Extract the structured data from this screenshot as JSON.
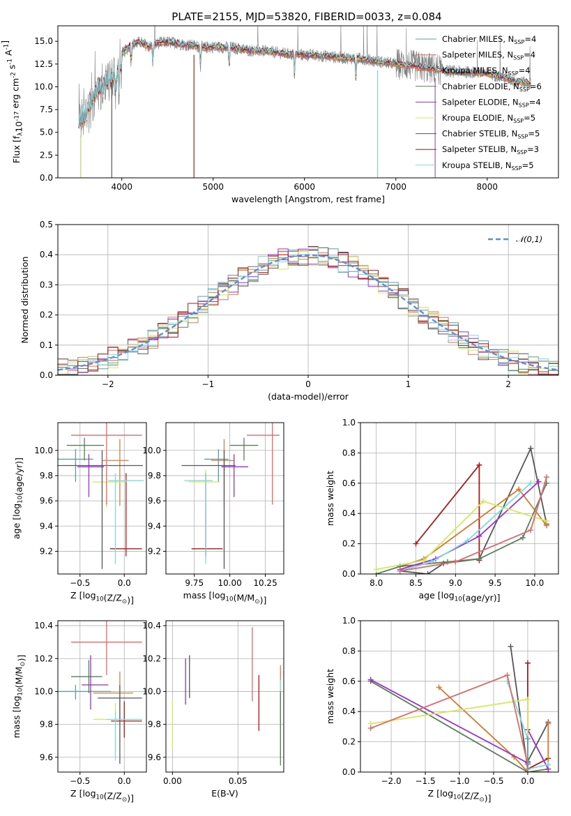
{
  "figure_title": "PLATE=2155, MJD=53820, FIBERID=0033, z=0.084",
  "models": [
    {
      "label": "Chabrier MILES, N$_{SSP}$=4",
      "base": "Chabrier MILES, N",
      "n": "4",
      "color": "#5f9ea0",
      "color2": "#5f9ea0"
    },
    {
      "label": "Salpeter MILES, N$_{SSP}$=4",
      "base": "Salpeter MILES, N",
      "n": "4",
      "color": "#e06a6a",
      "color2": "#e06a6a"
    },
    {
      "label": "Kroupa MILES, N$_{SSP}$=4",
      "base": "Kroupa MILES, N",
      "n": "4",
      "color": "#e07b39",
      "color2": "#d9772c"
    },
    {
      "label": "Chabrier ELODIE, N$_{SSP}$=6",
      "base": "Chabrier ELODIE, N",
      "n": "6",
      "color": "#5a7d5a",
      "color2": "#5a7d5a"
    },
    {
      "label": "Salpeter ELODIE, N$_{SSP}$=4",
      "base": "Salpeter ELODIE, N",
      "n": "4",
      "color": "#9932cc",
      "color2": "#9932cc"
    },
    {
      "label": "Kroupa ELODIE, N$_{SSP}$=5",
      "base": "Kroupa ELODIE, N",
      "n": "5",
      "color": "#d4e85a",
      "color2": "#d4e85a"
    },
    {
      "label": "Chabrier STELIB, N$_{SSP}$=5",
      "base": "Chabrier STELIB, N",
      "n": "5",
      "color": "#555555",
      "color2": "#555555"
    },
    {
      "label": "Salpeter STELIB, N$_{SSP}$=3",
      "base": "Salpeter STELIB, N",
      "n": "3",
      "color": "#aa1a1a",
      "color2": "#aa1a1a"
    },
    {
      "label": "Kroupa STELIB, N$_{SSP}$=5",
      "base": "Kroupa STELIB, N",
      "n": "5",
      "color": "#80d8e0",
      "color2": "#80d8e0"
    }
  ],
  "chart_data": [
    {
      "type": "line",
      "title": "PLATE=2155, MJD=53820, FIBERID=0033, z=0.084",
      "xlabel": "wavelength [Angstrom, rest frame]",
      "ylabel": "Flux [f$_λ$10$^{-17}$ erg cm$^{-2}$ s$^{-1}$ A$^{-1}$]",
      "xlim": [
        3300,
        8780
      ],
      "ylim": [
        0,
        16.7
      ],
      "xticks": [
        4000,
        5000,
        6000,
        7000,
        8000
      ],
      "yticks": [
        0.0,
        2.5,
        5.0,
        7.5,
        10.0,
        12.5,
        15.0
      ],
      "ytick_labels": [
        "0.0",
        "2.5",
        "5.0",
        "7.5",
        "10.0",
        "12.5",
        "15.0"
      ],
      "data_continuum": {
        "x": [
          3530,
          3600,
          3700,
          3800,
          3900,
          4000,
          4100,
          4200,
          4300,
          4400,
          4500,
          4600,
          4700,
          4800,
          4900,
          5000,
          5200,
          5400,
          5600,
          5800,
          6000,
          6200,
          6400,
          6600,
          6800,
          7000,
          7200,
          7400,
          7600,
          7800,
          8000,
          8200,
          8300,
          8480
        ],
        "y": [
          7.5,
          8.0,
          10.5,
          11.5,
          12.2,
          13.6,
          14.6,
          14.9,
          14.4,
          14.8,
          14.9,
          14.8,
          14.6,
          14.5,
          14.3,
          14.4,
          14.3,
          14.0,
          13.9,
          13.6,
          13.5,
          13.4,
          13.2,
          13.1,
          12.8,
          12.5,
          12.3,
          12.0,
          11.7,
          11.6,
          11.5,
          11.0,
          10.6,
          10.4
        ]
      },
      "grid": false,
      "legend": "right"
    },
    {
      "type": "line",
      "xlabel": "(data-model)/error",
      "ylabel": "Normed distribution",
      "xlim": [
        -2.5,
        2.5
      ],
      "ylim": [
        0,
        0.5
      ],
      "xticks": [
        -2,
        -1,
        0,
        1,
        2
      ],
      "xtick_labels": [
        "−2",
        "−1",
        "0",
        "1",
        "2"
      ],
      "yticks": [
        0.0,
        0.1,
        0.2,
        0.3,
        0.4,
        0.5
      ],
      "ytick_labels": [
        "0.0",
        "0.1",
        "0.2",
        "0.3",
        "0.4",
        "0.5"
      ],
      "reference_curve": {
        "name": "$\\mathcal{N}(0,1)$",
        "mean": 0,
        "sigma": 1,
        "color": "#5b8fd6"
      },
      "grid": true,
      "legend": "top-right"
    },
    {
      "type": "scatter",
      "xlabel": "Z [log$_{10}$(Z/Z$_⊙$)]",
      "ylabel": "age  [log$_{10}$(age/yr)]",
      "xlim": [
        -0.75,
        0.25
      ],
      "ylim": [
        9.02,
        10.22
      ],
      "xticks": [
        -0.5,
        0.0
      ],
      "xtick_labels": [
        "−0.5",
        "0.0"
      ],
      "yticks": [
        9.2,
        9.4,
        9.6,
        9.8,
        10.0
      ],
      "ytick_labels": [
        "9.2",
        "9.4",
        "9.6",
        "9.8",
        "10.0"
      ],
      "points": [
        {
          "model": 0,
          "x": -0.55,
          "xerr": [
            0.25,
            0.2
          ],
          "y": 9.93,
          "yerr": [
            0.18,
            0.08
          ]
        },
        {
          "model": 7,
          "x": 0.02,
          "xerr": [
            0.18,
            0.18
          ],
          "y": 9.22,
          "yerr": [
            0.06,
            0.6
          ]
        },
        {
          "model": 2,
          "x": -0.05,
          "xerr": [
            0.2,
            0.1
          ],
          "y": 9.92,
          "yerr": [
            0.36,
            0.17
          ]
        },
        {
          "model": 3,
          "x": -0.45,
          "xerr": [
            0.2,
            0.22
          ],
          "y": 10.04,
          "yerr": [
            0.12,
            0.06
          ]
        },
        {
          "model": 4,
          "x": -0.4,
          "xerr": [
            0.13,
            0.17
          ],
          "y": 9.87,
          "yerr": [
            0.24,
            0.1
          ]
        },
        {
          "model": 5,
          "x": -0.2,
          "xerr": [
            0.16,
            0.22
          ],
          "y": 9.75,
          "yerr": [
            0.2,
            0.1
          ]
        },
        {
          "model": 6,
          "x": -0.25,
          "xerr": [
            0.5,
            0.46
          ],
          "y": 9.88,
          "yerr": [
            0.82,
            0.12
          ]
        },
        {
          "model": 8,
          "x": -0.1,
          "xerr": [
            0.08,
            0.32
          ],
          "y": 9.76,
          "yerr": [
            0.66,
            0.06
          ]
        },
        {
          "model": 1,
          "x": -0.2,
          "xerr": [
            0.4,
            0.4
          ],
          "y": 10.12,
          "yerr": [
            0.55,
            0.1
          ]
        }
      ],
      "grid": true
    },
    {
      "type": "scatter",
      "xlabel": "mass [log$_{10}$(M/M$_⊙$)]",
      "xlim": [
        9.55,
        10.38
      ],
      "ylim": [
        9.02,
        10.22
      ],
      "xticks": [
        9.75,
        10.0,
        10.25
      ],
      "xtick_labels": [
        "9.75",
        "10.00",
        "10.25"
      ],
      "yticks": [
        9.2,
        9.4,
        9.6,
        9.8,
        10.0
      ],
      "ytick_labels": [
        "9.2",
        "9.4",
        "9.6",
        "9.8",
        "10.0"
      ],
      "points": [
        {
          "model": 0,
          "x": 9.92,
          "xerr": [
            0.1,
            0.07
          ],
          "y": 9.93,
          "yerr": [
            0.18,
            0.08
          ]
        },
        {
          "model": 7,
          "x": 9.83,
          "xerr": [
            0.1,
            0.12
          ],
          "y": 9.22,
          "yerr": [
            0.06,
            0.6
          ]
        },
        {
          "model": 2,
          "x": 9.96,
          "xerr": [
            0.09,
            0.07
          ],
          "y": 9.92,
          "yerr": [
            0.36,
            0.17
          ]
        },
        {
          "model": 3,
          "x": 10.1,
          "xerr": [
            0.1,
            0.1
          ],
          "y": 10.04,
          "yerr": [
            0.12,
            0.06
          ]
        },
        {
          "model": 4,
          "x": 10.03,
          "xerr": [
            0.09,
            0.1
          ],
          "y": 9.87,
          "yerr": [
            0.24,
            0.1
          ]
        },
        {
          "model": 5,
          "x": 9.83,
          "xerr": [
            0.12,
            0.1
          ],
          "y": 9.75,
          "yerr": [
            0.2,
            0.1
          ]
        },
        {
          "model": 6,
          "x": 9.96,
          "xerr": [
            0.3,
            0.08
          ],
          "y": 9.88,
          "yerr": [
            0.82,
            0.12
          ]
        },
        {
          "model": 8,
          "x": 9.83,
          "xerr": [
            0.15,
            0.05
          ],
          "y": 9.76,
          "yerr": [
            0.66,
            0.06
          ]
        },
        {
          "model": 1,
          "x": 10.3,
          "xerr": [
            0.18,
            0.05
          ],
          "y": 10.12,
          "yerr": [
            0.55,
            0.1
          ]
        }
      ],
      "grid": true
    },
    {
      "type": "line",
      "xlabel": "age  [log$_{10}$(age/yr)]",
      "ylabel": "mass weight",
      "xlim": [
        7.8,
        10.3
      ],
      "ylim": [
        0,
        1.0
      ],
      "xticks": [
        8.0,
        8.5,
        9.0,
        9.5,
        10.0
      ],
      "xtick_labels": [
        "8.0",
        "8.5",
        "9.0",
        "9.5",
        "10.0"
      ],
      "yticks": [
        0.0,
        0.2,
        0.4,
        0.6,
        0.8,
        1.0
      ],
      "ytick_labels": [
        "0.0",
        "0.2",
        "0.4",
        "0.6",
        "0.8",
        "1.0"
      ],
      "series": [
        {
          "model": 6,
          "x": [
            8.3,
            8.65,
            8.85,
            9.3,
            9.95,
            10.15
          ],
          "y": [
            0.02,
            0.0,
            0.07,
            0.1,
            0.83,
            0.33
          ]
        },
        {
          "model": 7,
          "x": [
            8.5,
            9.3,
            9.3
          ],
          "y": [
            0.2,
            0.72,
            0.09
          ]
        },
        {
          "model": 2,
          "x": [
            8.3,
            8.6,
            9.8,
            10.15
          ],
          "y": [
            0.05,
            0.1,
            0.56,
            0.32
          ]
        },
        {
          "model": 3,
          "x": [
            8.0,
            8.3,
            8.9,
            9.3,
            9.85,
            10.15
          ],
          "y": [
            0.0,
            0.05,
            0.08,
            0.1,
            0.24,
            0.6
          ]
        },
        {
          "model": 4,
          "x": [
            8.3,
            8.75,
            9.3,
            10.05
          ],
          "y": [
            0.03,
            0.1,
            0.25,
            0.61
          ]
        },
        {
          "model": 5,
          "x": [
            8.0,
            8.6,
            9.35,
            10.15
          ],
          "y": [
            0.03,
            0.09,
            0.48,
            0.35
          ]
        },
        {
          "model": 8,
          "x": [
            8.3,
            8.7,
            9.15,
            9.95
          ],
          "y": [
            0.02,
            0.08,
            0.22,
            0.6
          ]
        },
        {
          "model": 1,
          "x": [
            8.3,
            9.0,
            9.95,
            10.15
          ],
          "y": [
            0.02,
            0.08,
            0.29,
            0.64
          ]
        }
      ],
      "grid": true
    },
    {
      "type": "scatter",
      "xlabel": "Z [log$_{10}$(Z/Z$_⊙$)]",
      "ylabel": "mass [log$_{10}$(M/M$_⊙$)]",
      "xlim": [
        -0.75,
        0.25
      ],
      "ylim": [
        9.51,
        10.43
      ],
      "xticks": [
        -0.5,
        0.0
      ],
      "xtick_labels": [
        "−0.5",
        "0.0"
      ],
      "yticks": [
        9.6,
        9.8,
        10.0,
        10.2,
        10.4
      ],
      "ytick_labels": [
        "9.6",
        "9.8",
        "10.0",
        "10.2",
        "10.4"
      ],
      "points": [
        {
          "model": 0,
          "x": -0.55,
          "xerr": [
            0.2,
            0.4
          ],
          "y": 10.0,
          "yerr": [
            0.05,
            0.04
          ]
        },
        {
          "model": 7,
          "x": 0.0,
          "xerr": [
            0.15,
            0.2
          ],
          "y": 9.82,
          "yerr": [
            0.1,
            0.12
          ]
        },
        {
          "model": 2,
          "x": -0.05,
          "xerr": [
            0.3,
            0.15
          ],
          "y": 9.99,
          "yerr": [
            0.16,
            0.13
          ]
        },
        {
          "model": 3,
          "x": -0.4,
          "xerr": [
            0.2,
            0.15
          ],
          "y": 10.09,
          "yerr": [
            0.1,
            0.1
          ]
        },
        {
          "model": 4,
          "x": -0.38,
          "xerr": [
            0.1,
            0.2
          ],
          "y": 10.04,
          "yerr": [
            0.15,
            0.18
          ]
        },
        {
          "model": 5,
          "x": -0.1,
          "xerr": [
            0.25,
            0.3
          ],
          "y": 9.83,
          "yerr": [
            0.2,
            0.1
          ]
        },
        {
          "model": 6,
          "x": -0.05,
          "xerr": [
            0.25,
            0.25
          ],
          "y": 9.96,
          "yerr": [
            0.4,
            0.08
          ]
        },
        {
          "model": 8,
          "x": -0.1,
          "xerr": [
            0.1,
            0.3
          ],
          "y": 9.83,
          "yerr": [
            0.25,
            0.05
          ]
        },
        {
          "model": 1,
          "x": -0.2,
          "xerr": [
            0.4,
            0.4
          ],
          "y": 10.3,
          "yerr": [
            0.2,
            0.15
          ]
        }
      ],
      "grid": true
    },
    {
      "type": "scatter",
      "xlabel": "E(B-V)",
      "xlim": [
        -0.005,
        0.085
      ],
      "ylim": [
        9.51,
        10.43
      ],
      "xticks": [
        0.0,
        0.05
      ],
      "xtick_labels": [
        "0.00",
        "0.05"
      ],
      "yticks": [
        9.6,
        9.8,
        10.0,
        10.2,
        10.4
      ],
      "ytick_labels": [
        "9.6",
        "9.8",
        "10.0",
        "10.2",
        "10.4"
      ],
      "points": [
        {
          "model": 5,
          "x": 0.0,
          "y": 9.83,
          "yerr": [
            0.18,
            0.12
          ]
        },
        {
          "model": 4,
          "x": 0.01,
          "y": 10.04,
          "yerr": [
            0.12,
            0.16
          ]
        },
        {
          "model": 6,
          "x": 0.013,
          "y": 10.07,
          "yerr": [
            0.11,
            0.15
          ]
        },
        {
          "model": 1,
          "x": 0.061,
          "y": 10.22,
          "yerr": [
            0.28,
            0.17
          ]
        },
        {
          "model": 7,
          "x": 0.066,
          "y": 9.92,
          "yerr": [
            0.16,
            0.18
          ]
        },
        {
          "model": 2,
          "x": 0.0825,
          "y": 10.06,
          "yerr": [
            0.25,
            0.1
          ]
        },
        {
          "model": 8,
          "x": 0.0825,
          "y": 9.84,
          "yerr": [
            0.25,
            0.23
          ]
        },
        {
          "model": 3,
          "x": 0.0825,
          "y": 9.85,
          "yerr": [
            0.3,
            0.15
          ]
        }
      ],
      "grid": true
    },
    {
      "type": "line",
      "xlabel": "Z [log$_{10}$(Z/Z$_⊙$)]",
      "ylabel": "mass weight",
      "xlim": [
        -2.45,
        0.45
      ],
      "ylim": [
        0,
        1.0
      ],
      "xticks": [
        -2.0,
        -1.5,
        -1.0,
        -0.5,
        0.0
      ],
      "xtick_labels": [
        "−2.0",
        "−1.5",
        "−1.0",
        "−0.5",
        "0.0"
      ],
      "yticks": [
        0.0,
        0.2,
        0.4,
        0.6,
        0.8,
        1.0
      ],
      "ytick_labels": [
        "0.0",
        "0.2",
        "0.4",
        "0.6",
        "0.8",
        "1.0"
      ],
      "series": [
        {
          "model": 6,
          "x": [
            -0.25,
            0.0,
            0.0,
            0.3
          ],
          "y": [
            0.83,
            0.02,
            0.07,
            0.33
          ]
        },
        {
          "model": 7,
          "x": [
            0.0,
            0.0,
            0.3
          ],
          "y": [
            0.72,
            0.02,
            0.09
          ]
        },
        {
          "model": 2,
          "x": [
            -1.3,
            -0.2,
            0.0,
            0.3,
            0.3
          ],
          "y": [
            0.56,
            0.1,
            0.0,
            0.0,
            0.32
          ]
        },
        {
          "model": 3,
          "x": [
            -2.3,
            0.0,
            0.3
          ],
          "y": [
            0.6,
            0.0,
            0.02
          ]
        },
        {
          "model": 4,
          "x": [
            -2.3,
            0.0,
            0.0,
            0.3
          ],
          "y": [
            0.61,
            0.06,
            0.28,
            0.02
          ]
        },
        {
          "model": 5,
          "x": [
            -2.3,
            0.0,
            0.0
          ],
          "y": [
            0.32,
            0.48,
            0.02
          ]
        },
        {
          "model": 8,
          "x": [
            -0.3,
            0.0,
            0.0,
            0.3
          ],
          "y": [
            0.6,
            0.22,
            0.02,
            0.05
          ]
        },
        {
          "model": 1,
          "x": [
            -2.3,
            -0.3,
            0.0,
            0.0
          ],
          "y": [
            0.29,
            0.64,
            0.05,
            0.02
          ]
        },
        {
          "model": 0,
          "x": [
            0.0,
            0.0
          ],
          "y": [
            0.0,
            0.22
          ]
        }
      ],
      "grid": true
    }
  ]
}
